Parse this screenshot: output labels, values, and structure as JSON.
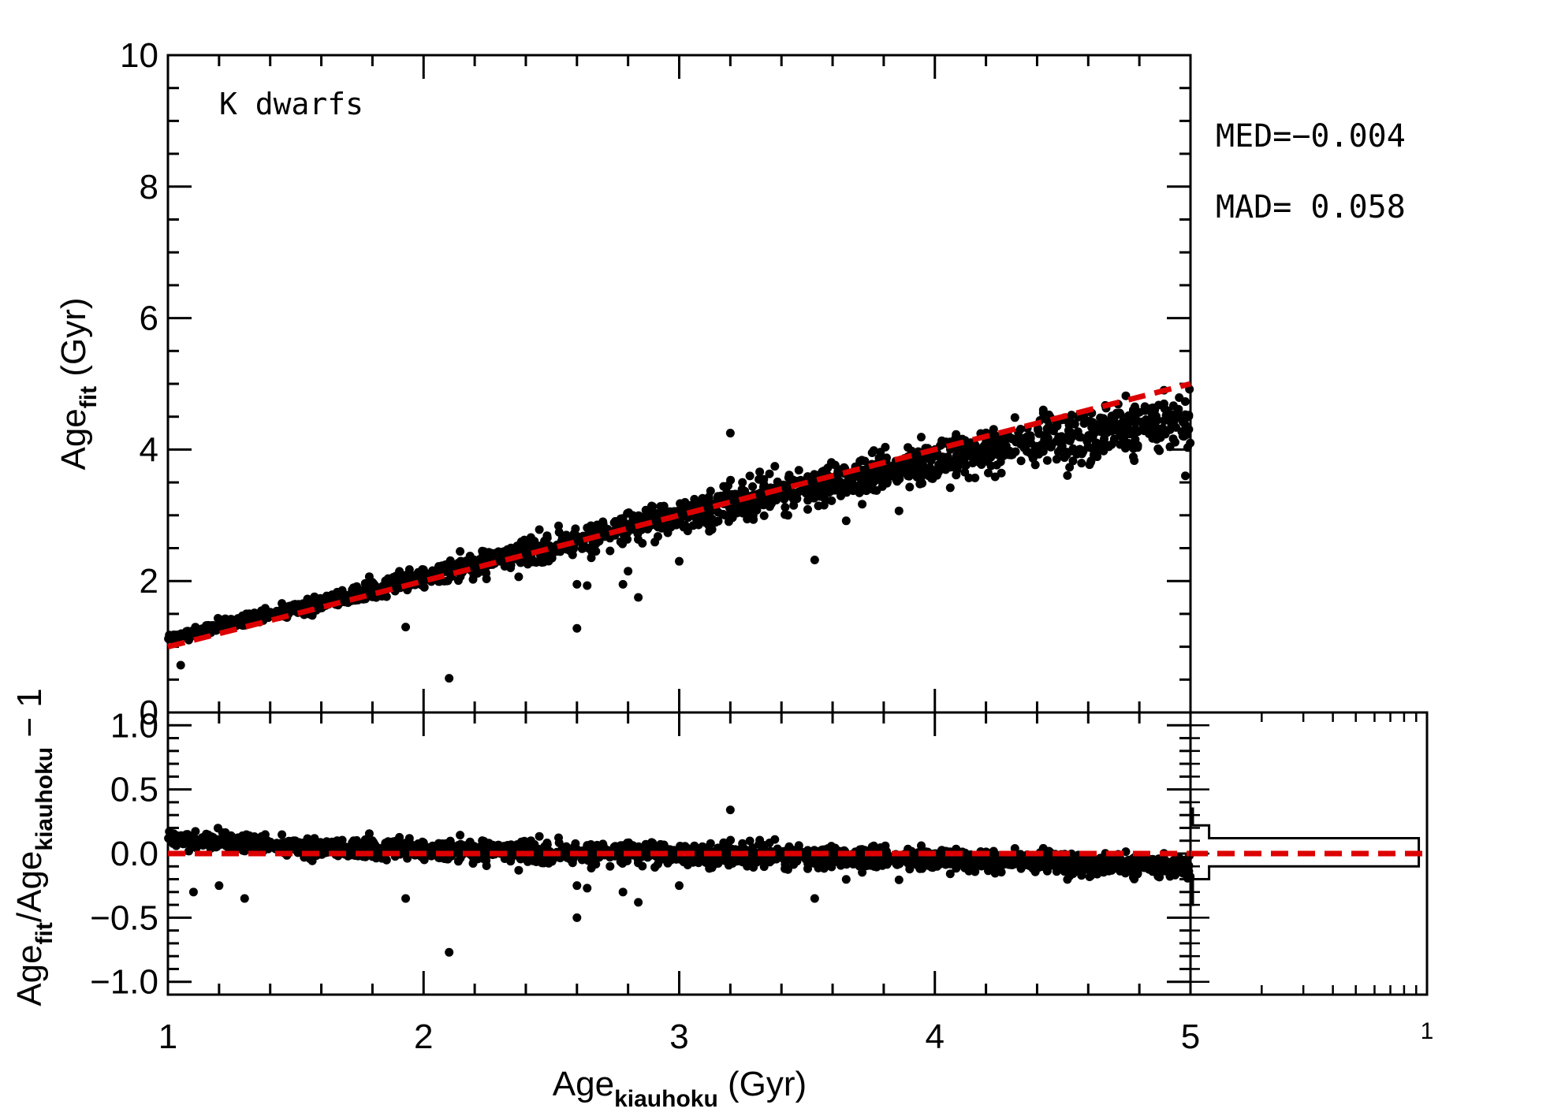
{
  "chart_data": [
    {
      "type": "scatter",
      "panel": "main",
      "annotation": "K dwarfs",
      "xlim": [
        1,
        5
      ],
      "ylim": [
        0,
        10
      ],
      "y_ticks": [
        "0",
        "2",
        "4",
        "6",
        "8",
        "10"
      ],
      "ylabel": {
        "base": "Age",
        "sub": "fit",
        "suffix": " (Gyr)"
      },
      "stats": {
        "med": "MED=−0.004",
        "mad": "MAD=  0.058"
      },
      "reference_line": {
        "style": "dashed",
        "color": "#dd0000",
        "points": [
          [
            1,
            1
          ],
          [
            5,
            5
          ]
        ]
      },
      "bulk_trend": {
        "x": [
          1.0,
          1.5,
          2.0,
          2.5,
          3.0,
          3.5,
          4.0,
          4.5,
          5.0
        ],
        "y": [
          1.12,
          1.58,
          2.06,
          2.54,
          2.99,
          3.42,
          3.82,
          4.2,
          4.48
        ]
      },
      "outliers": [
        [
          3.2,
          4.25
        ],
        [
          2.1,
          0.52
        ],
        [
          2.6,
          1.28
        ],
        [
          1.93,
          1.3
        ],
        [
          2.6,
          1.95
        ],
        [
          2.64,
          1.93
        ],
        [
          2.78,
          1.95
        ],
        [
          2.8,
          2.15
        ],
        [
          2.84,
          1.75
        ],
        [
          3.0,
          2.3
        ],
        [
          3.53,
          2.32
        ],
        [
          4.98,
          3.6
        ],
        [
          1.05,
          0.72
        ]
      ]
    },
    {
      "type": "scatter",
      "panel": "residual",
      "xlim": [
        1,
        5
      ],
      "ylim": [
        -1.1,
        1.1
      ],
      "x_ticks": [
        "1",
        "2",
        "3",
        "4",
        "5"
      ],
      "y_ticks": [
        "−1.0",
        "−0.5",
        "0.0",
        "0.5",
        "1.0"
      ],
      "xlabel": {
        "base": "Age",
        "sub": "kiauhoku",
        "suffix": " (Gyr)"
      },
      "ylabel": {
        "base": "Age",
        "sub1": "fit",
        "mid": "/Age",
        "sub2": "kiauhoku",
        "suffix": "  −  1"
      },
      "reference_line": {
        "style": "dashed",
        "color": "#dd0000",
        "y": 0
      },
      "bulk_trend": {
        "x": [
          1.0,
          1.5,
          2.0,
          2.5,
          3.0,
          3.5,
          4.0,
          4.5,
          5.0
        ],
        "y": [
          0.1,
          0.07,
          0.05,
          0.03,
          0.0,
          -0.02,
          -0.05,
          -0.08,
          -0.1
        ]
      },
      "outliers": [
        [
          3.2,
          0.34
        ],
        [
          2.1,
          -0.77
        ],
        [
          2.6,
          -0.5
        ],
        [
          1.93,
          -0.35
        ],
        [
          1.3,
          -0.35
        ],
        [
          2.6,
          -0.25
        ],
        [
          2.64,
          -0.27
        ],
        [
          2.78,
          -0.3
        ],
        [
          2.84,
          -0.38
        ],
        [
          3.0,
          -0.25
        ],
        [
          3.53,
          -0.35
        ],
        [
          1.1,
          -0.3
        ],
        [
          1.2,
          -0.25
        ]
      ]
    },
    {
      "type": "histogram",
      "panel": "histogram",
      "orientation": "horizontal",
      "x_ticks": [
        "1"
      ],
      "y_scale": "residual",
      "steps": [
        {
          "y0": 0.35,
          "y1": 0.22,
          "count": 0.01
        },
        {
          "y0": 0.22,
          "y1": 0.12,
          "count": 0.08
        },
        {
          "y0": 0.12,
          "y1": -0.1,
          "count": 0.98
        },
        {
          "y0": -0.1,
          "y1": -0.2,
          "count": 0.08
        },
        {
          "y0": -0.2,
          "y1": -0.4,
          "count": 0.01
        }
      ],
      "reference_line": {
        "style": "dashed",
        "color": "#dd0000",
        "y": 0
      }
    }
  ]
}
